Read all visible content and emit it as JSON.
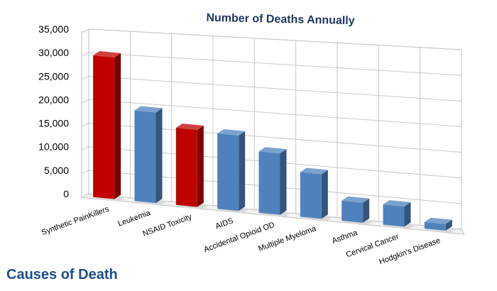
{
  "chart_data": {
    "type": "bar",
    "title": "Number of Deaths Annually",
    "xlabel": "",
    "ylabel": "",
    "categories": [
      "Synthetic PainKillers",
      "Leukemia",
      "NSAID Toxicity",
      "AIDS",
      "Accidental Opioid OD",
      "Multiple Myeloma",
      "Asthma",
      "Cervical Cancer",
      "Hodgkin's Disease"
    ],
    "values": [
      30000,
      19000,
      16000,
      15500,
      12500,
      9000,
      4000,
      4000,
      1300
    ],
    "bar_colors": [
      "#c00000",
      "#4f81bd",
      "#c00000",
      "#4f81bd",
      "#4f81bd",
      "#4f81bd",
      "#4f81bd",
      "#4f81bd",
      "#4f81bd"
    ],
    "ylim": [
      0,
      35000
    ],
    "yticks": [
      "0",
      "5,000",
      "10,000",
      "15,000",
      "20,000",
      "25,000",
      "30,000",
      "35,000"
    ],
    "grid": true,
    "legend": "none",
    "style": "3d-perspective"
  },
  "footer": {
    "label": "Causes of Death"
  },
  "colors": {
    "highlight": "#c00000",
    "default": "#4f81bd",
    "title": "#1f3864",
    "footer": "#1f4e8c"
  }
}
